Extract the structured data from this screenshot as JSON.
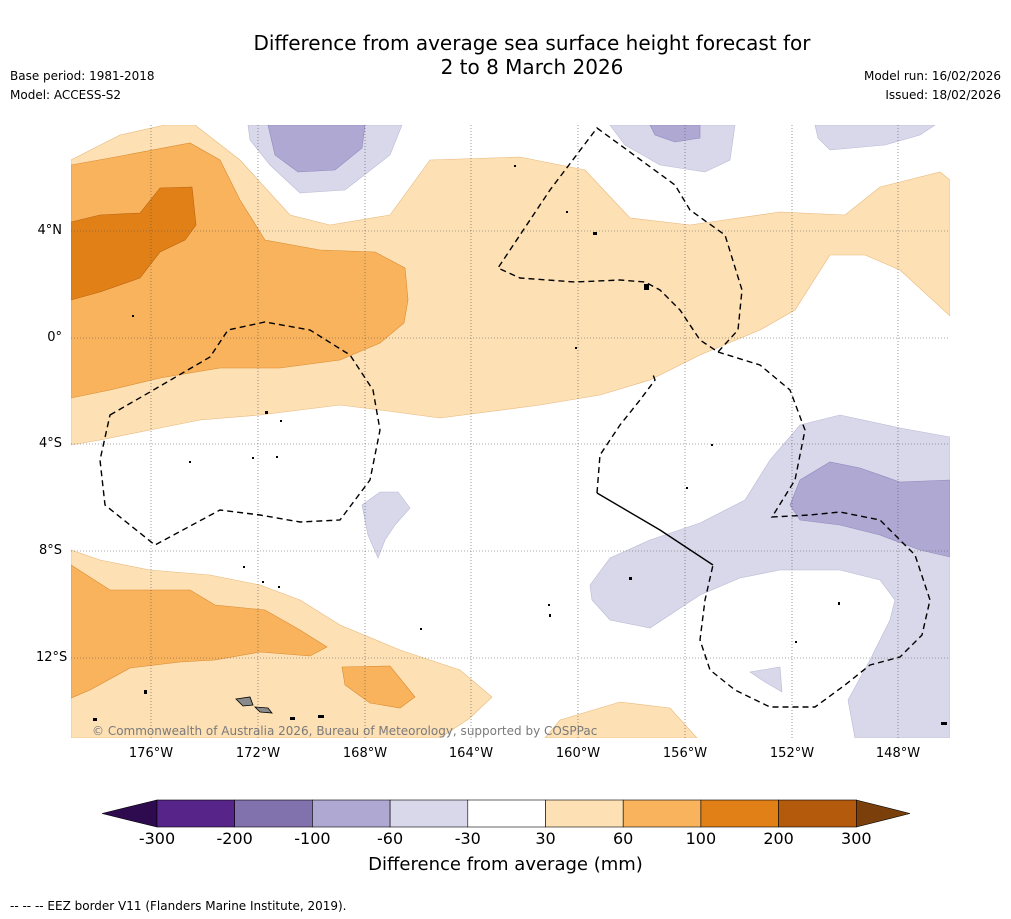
{
  "title_line1": "Difference from average sea surface height forecast for",
  "title_line2": "2 to 8 March 2026",
  "meta_left": {
    "base_period": "Base period: 1981-2018",
    "model": "Model: ACCESS-S2"
  },
  "meta_right": {
    "model_run": "Model run: 16/02/2026",
    "issued": "Issued: 18/02/2026"
  },
  "latitude_labels": [
    "4°N",
    "0°",
    "4°S",
    "8°S",
    "12°S"
  ],
  "longitude_labels": [
    "176°W",
    "172°W",
    "168°W",
    "164°W",
    "160°W",
    "156°W",
    "152°W",
    "148°W"
  ],
  "copyright": "© Commonwealth of Australia 2026, Bureau of Meteorology, supported by COSPPac",
  "colorbar": {
    "title": "Difference from average (mm)",
    "tick_labels": [
      "-300",
      "-200",
      "-100",
      "-60",
      "-30",
      "30",
      "60",
      "100",
      "200",
      "300"
    ],
    "colors": [
      "#2d0b4e",
      "#57258a",
      "#8172ad",
      "#afa8d2",
      "#d8d8ea",
      "#ffffff",
      "#fde0b4",
      "#f9b35d",
      "#e08016",
      "#b35a0c",
      "#7a3f0a"
    ]
  },
  "eez_note": "--  --  -- EEZ border V11 (Flanders Marine Institute, 2019)."
}
